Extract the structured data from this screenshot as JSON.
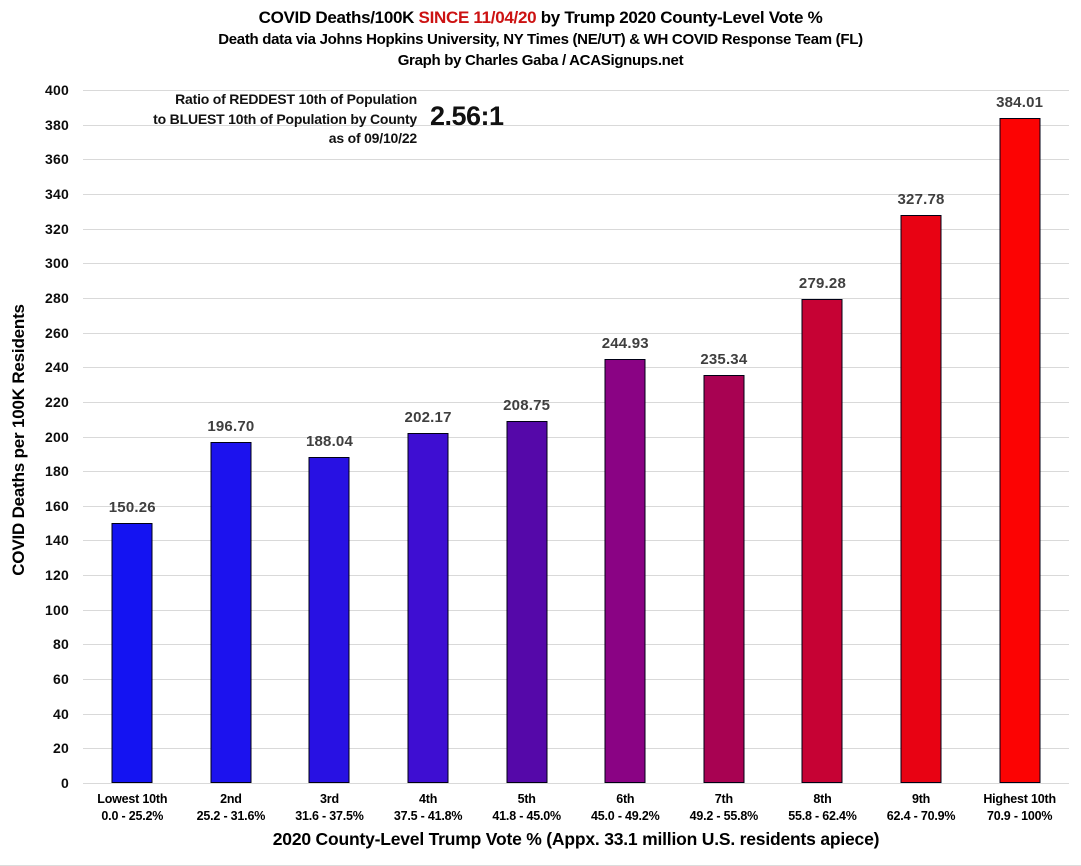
{
  "title": {
    "line1_prefix": "COVID Deaths/100K ",
    "line1_highlight": "SINCE 11/04/20",
    "line1_suffix": " by Trump 2020 County-Level Vote %",
    "line2": "Death data via Johns Hopkins University, NY Times (NE/UT) & WH COVID Response Team (FL)",
    "line3": "Graph by Charles Gaba / ACASignups.net"
  },
  "annotation": {
    "line1": "Ratio of REDDEST 10th of Population",
    "line2": "to BLUEST 10th of Population by County",
    "line3": "as of 09/10/22",
    "ratio": "2.56:1"
  },
  "colors": {
    "highlight": "#cc1212",
    "grid": "#d9d9d9",
    "bar_border": "#000014",
    "value_label": "#3f3f3f"
  },
  "chart_data": {
    "type": "bar",
    "title": "COVID Deaths/100K SINCE 11/04/20 by Trump 2020 County-Level Vote %",
    "subtitle": "Death data via Johns Hopkins University, NY Times (NE/UT) & WH COVID Response Team (FL)",
    "credit": "Graph by Charles Gaba / ACASignups.net",
    "xlabel": "2020 County-Level Trump Vote % (Appx. 33.1 million U.S. residents apiece)",
    "ylabel": "COVID Deaths per 100K Residents",
    "ylim": [
      0,
      400
    ],
    "ytick_step": 20,
    "grid": true,
    "legend": "none",
    "categories": [
      "Lowest 10th",
      "2nd",
      "3rd",
      "4th",
      "5th",
      "6th",
      "7th",
      "8th",
      "9th",
      "Highest 10th"
    ],
    "category_ranges": [
      "0.0 - 25.2%",
      "25.2 - 31.6%",
      "31.6 - 37.5%",
      "37.5 - 41.8%",
      "41.8 - 45.0%",
      "45.0 - 49.2%",
      "49.2 - 55.8%",
      "55.8 - 62.4%",
      "62.4 - 70.9%",
      "70.9 - 100%"
    ],
    "values": [
      150.26,
      196.7,
      188.04,
      202.17,
      208.75,
      244.93,
      235.34,
      279.28,
      327.78,
      384.01
    ],
    "value_labels": [
      "150.26",
      "196.70",
      "188.04",
      "202.17",
      "208.75",
      "244.93",
      "235.34",
      "279.28",
      "327.78",
      "384.01"
    ],
    "bar_colors": [
      "#1413f2",
      "#1c12ee",
      "#2811e3",
      "#3e0ed2",
      "#5508a9",
      "#8a0384",
      "#a80252",
      "#c60234",
      "#e80213",
      "#fc0303"
    ],
    "annotation_ratio": "2.56:1",
    "annotation_text": "Ratio of REDDEST 10th of Population to BLUEST 10th of Population by County as of 09/10/22"
  }
}
